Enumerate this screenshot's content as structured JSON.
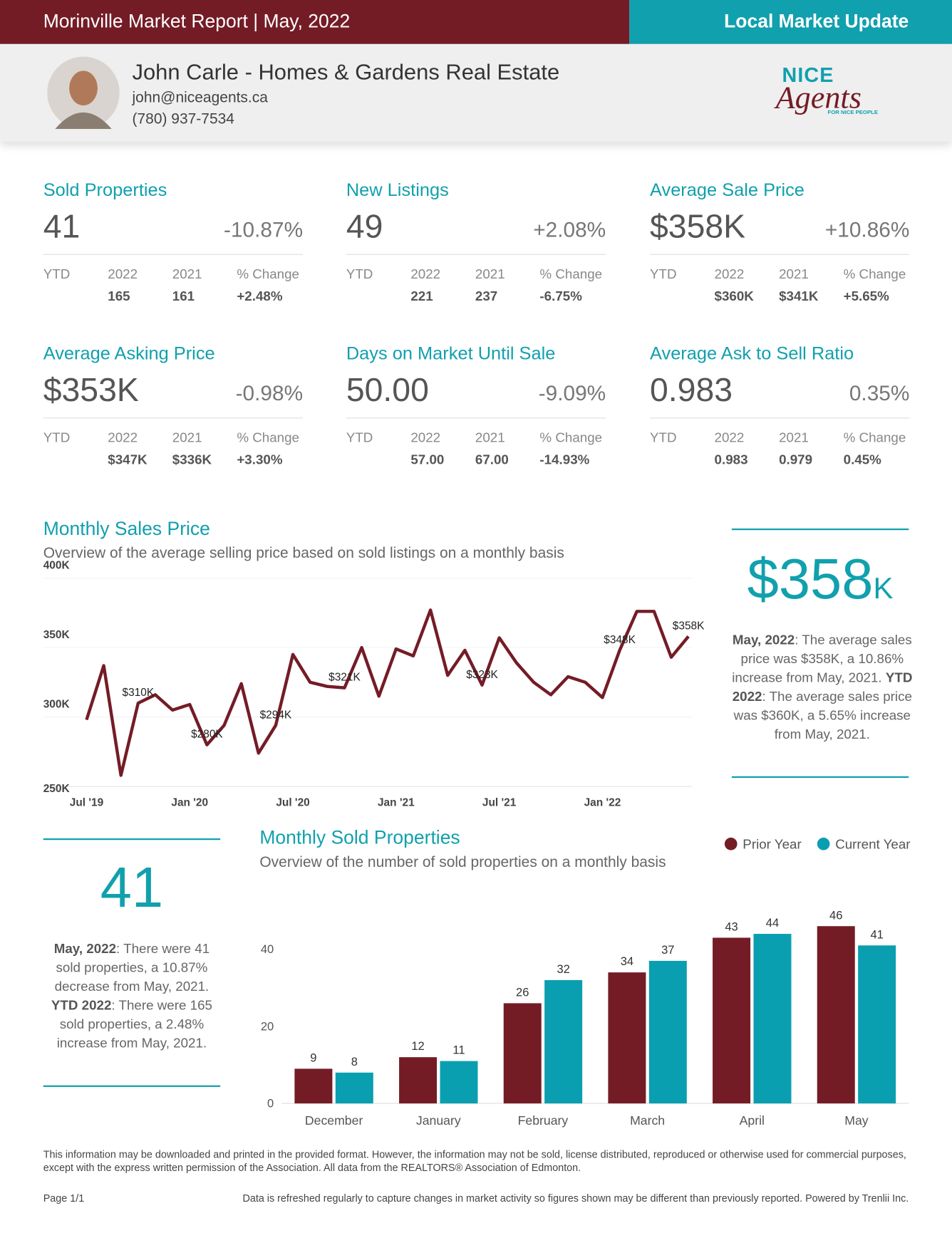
{
  "header": {
    "title": "Morinville Market Report | May, 2022",
    "tag": "Local Market Update"
  },
  "agent": {
    "name": "John Carle - Homes & Gardens Real Estate",
    "email": "john@niceagents.ca",
    "phone": "(780) 937-7534"
  },
  "logo": {
    "top": "NICE",
    "main": "Agents",
    "tagline": "FOR NICE PEOPLE"
  },
  "stats": [
    {
      "title": "Sold Properties",
      "value": "41",
      "change": "-10.87%",
      "ytd_label": "YTD",
      "columns": [
        "2022",
        "2021",
        "% Change"
      ],
      "ytd": [
        "165",
        "161",
        "+2.48%"
      ]
    },
    {
      "title": "New Listings",
      "value": "49",
      "change": "+2.08%",
      "ytd_label": "YTD",
      "columns": [
        "2022",
        "2021",
        "% Change"
      ],
      "ytd": [
        "221",
        "237",
        "-6.75%"
      ]
    },
    {
      "title": "Average Sale Price",
      "value": "$358K",
      "change": "+10.86%",
      "ytd_label": "YTD",
      "columns": [
        "2022",
        "2021",
        "% Change"
      ],
      "ytd": [
        "$360K",
        "$341K",
        "+5.65%"
      ]
    },
    {
      "title": "Average Asking Price",
      "value": "$353K",
      "change": "-0.98%",
      "ytd_label": "YTD",
      "columns": [
        "2022",
        "2021",
        "% Change"
      ],
      "ytd": [
        "$347K",
        "$336K",
        "+3.30%"
      ]
    },
    {
      "title": "Days on Market Until Sale",
      "value": "50.00",
      "change": "-9.09%",
      "ytd_label": "YTD",
      "columns": [
        "2022",
        "2021",
        "% Change"
      ],
      "ytd": [
        "57.00",
        "67.00",
        "-14.93%"
      ]
    },
    {
      "title": "Average Ask to Sell Ratio",
      "value": "0.983",
      "change": "0.35%",
      "ytd_label": "YTD",
      "columns": [
        "2022",
        "2021",
        "% Change"
      ],
      "ytd": [
        "0.983",
        "0.979",
        "0.45%"
      ]
    }
  ],
  "chart_data": [
    {
      "type": "line",
      "title": "Monthly Sales Price",
      "subtitle": "Overview of the average selling price based on sold listings on a monthly basis",
      "categories": [
        "Jul '19",
        null,
        null,
        null,
        null,
        null,
        "Jan '20",
        null,
        null,
        null,
        null,
        null,
        "Jul '20",
        null,
        null,
        null,
        null,
        null,
        "Jan '21",
        null,
        null,
        null,
        null,
        null,
        "Jul '21",
        null,
        null,
        null,
        null,
        null,
        "Jan '22",
        null,
        null,
        null,
        null,
        null
      ],
      "values": [
        298,
        337,
        258,
        310,
        316,
        305,
        309,
        280,
        294,
        324,
        274,
        294,
        345,
        325,
        322,
        321,
        350,
        315,
        349,
        344,
        377,
        330,
        348,
        323,
        357,
        339,
        325,
        316,
        329,
        325,
        314,
        348,
        376,
        376,
        343,
        358
      ],
      "value_labels": [
        null,
        null,
        null,
        "$310K",
        null,
        null,
        null,
        "$280K",
        null,
        null,
        null,
        "$294K",
        null,
        null,
        null,
        "$321K",
        null,
        null,
        null,
        null,
        null,
        null,
        null,
        "$323K",
        null,
        null,
        null,
        null,
        null,
        null,
        null,
        "$348K",
        null,
        null,
        null,
        "$358K"
      ],
      "color": "#741c26",
      "ylim": [
        250,
        400
      ],
      "yticks": [
        {
          "value": 250,
          "label": "250K"
        },
        {
          "value": 300,
          "label": "300K"
        },
        {
          "value": 350,
          "label": "350K"
        },
        {
          "value": 400,
          "label": "400K"
        }
      ],
      "grid": true
    },
    {
      "type": "bar",
      "title": "Monthly Sold Properties",
      "subtitle": "Overview of the number of sold properties on a monthly basis",
      "categories": [
        "December",
        "January",
        "February",
        "March",
        "April",
        "May"
      ],
      "series": [
        {
          "name": "Prior Year",
          "color": "#741c26",
          "values": [
            9,
            12,
            26,
            34,
            43,
            46
          ]
        },
        {
          "name": "Current Year",
          "color": "#0a9fb0",
          "values": [
            8,
            11,
            32,
            37,
            44,
            41
          ]
        }
      ],
      "ylim": [
        0,
        50
      ],
      "yticks": [
        0,
        20,
        40
      ],
      "legend": "top-right"
    }
  ],
  "price_summary": {
    "big": "$358",
    "unit": "K",
    "note": [
      {
        "text": "May, 2022",
        "bold": true
      },
      {
        "text": ": The average sales price was $358K, a 10.86% increase from May, 2021. "
      },
      {
        "text": "YTD 2022",
        "bold": true
      },
      {
        "text": ": The average sales price was $360K, a 5.65% increase from May, 2021."
      }
    ]
  },
  "sold_summary": {
    "big": "41",
    "note": [
      {
        "text": "May, 2022",
        "bold": true
      },
      {
        "text": ": There were 41 sold properties, a 10.87% decrease from May, 2021. "
      },
      {
        "text": "YTD 2022",
        "bold": true
      },
      {
        "text": ": There were 165 sold properties, a 2.48% increase from May, 2021."
      }
    ]
  },
  "footer": {
    "disclaimer": "This information may be downloaded and printed in the provided format. However, the information may not be sold, license distributed, reproduced or otherwise used for commercial purposes, except with the express written permission of the Association. All data from the REALTORS® Association of Edmonton.",
    "page": "Page 1/1",
    "refresh": "Data is refreshed regularly to capture changes in market activity so figures shown may be different than previously reported. Powered by Trenlii Inc."
  }
}
